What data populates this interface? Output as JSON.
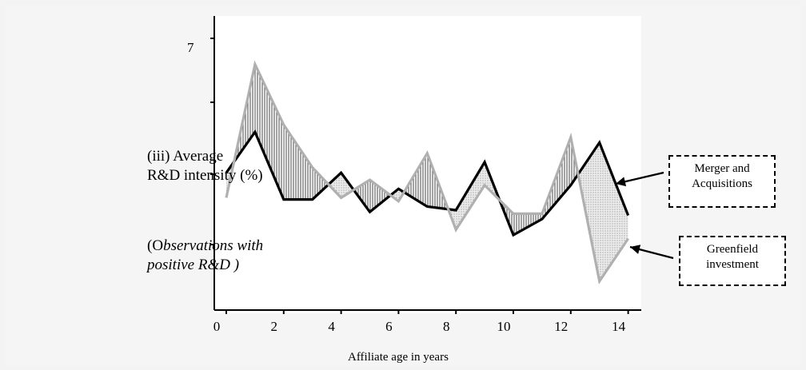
{
  "chart_data": {
    "type": "line",
    "title": "",
    "ylabel_lines": [
      "(iii)  Average",
      "R&D intensity (%)"
    ],
    "ylabel_note_lines": [
      "(Observations with",
      "positive R&D )"
    ],
    "xlabel": "Affiliate age in years",
    "x_ticks": [
      0,
      2,
      4,
      6,
      8,
      10,
      12,
      14
    ],
    "y_tick_labels": [
      {
        "value": 7,
        "label": "7"
      }
    ],
    "xlim": [
      0,
      15
    ],
    "ylim": [
      0,
      8
    ],
    "x": [
      0,
      1,
      2,
      3,
      4,
      5,
      6,
      7,
      8,
      9,
      10,
      11,
      12,
      13,
      14
    ],
    "series": [
      {
        "name": "Merger and Acquisitions",
        "name_lines": [
          "Merger and",
          "Acquisitions"
        ],
        "color": "#000000",
        "values": [
          3.95,
          5.1,
          3.2,
          3.2,
          3.95,
          2.85,
          3.5,
          3.0,
          2.9,
          4.25,
          2.2,
          2.65,
          3.6,
          4.8,
          2.75
        ]
      },
      {
        "name": "Greenfield investment",
        "name_lines": [
          "Greenfield",
          "investment"
        ],
        "color": "#b0b0b0",
        "values": [
          3.25,
          7.0,
          5.3,
          4.1,
          3.25,
          3.75,
          3.15,
          4.5,
          2.35,
          3.6,
          2.8,
          2.8,
          4.95,
          0.9,
          2.1
        ]
      }
    ],
    "fills": [
      {
        "when": "greenfield_above",
        "pattern": "vertical-stripes",
        "color": "#7a7a7a"
      },
      {
        "when": "ma_above",
        "pattern": "dots",
        "color": "#9a9a9a"
      }
    ],
    "grid": false,
    "legend_placement": "right"
  }
}
